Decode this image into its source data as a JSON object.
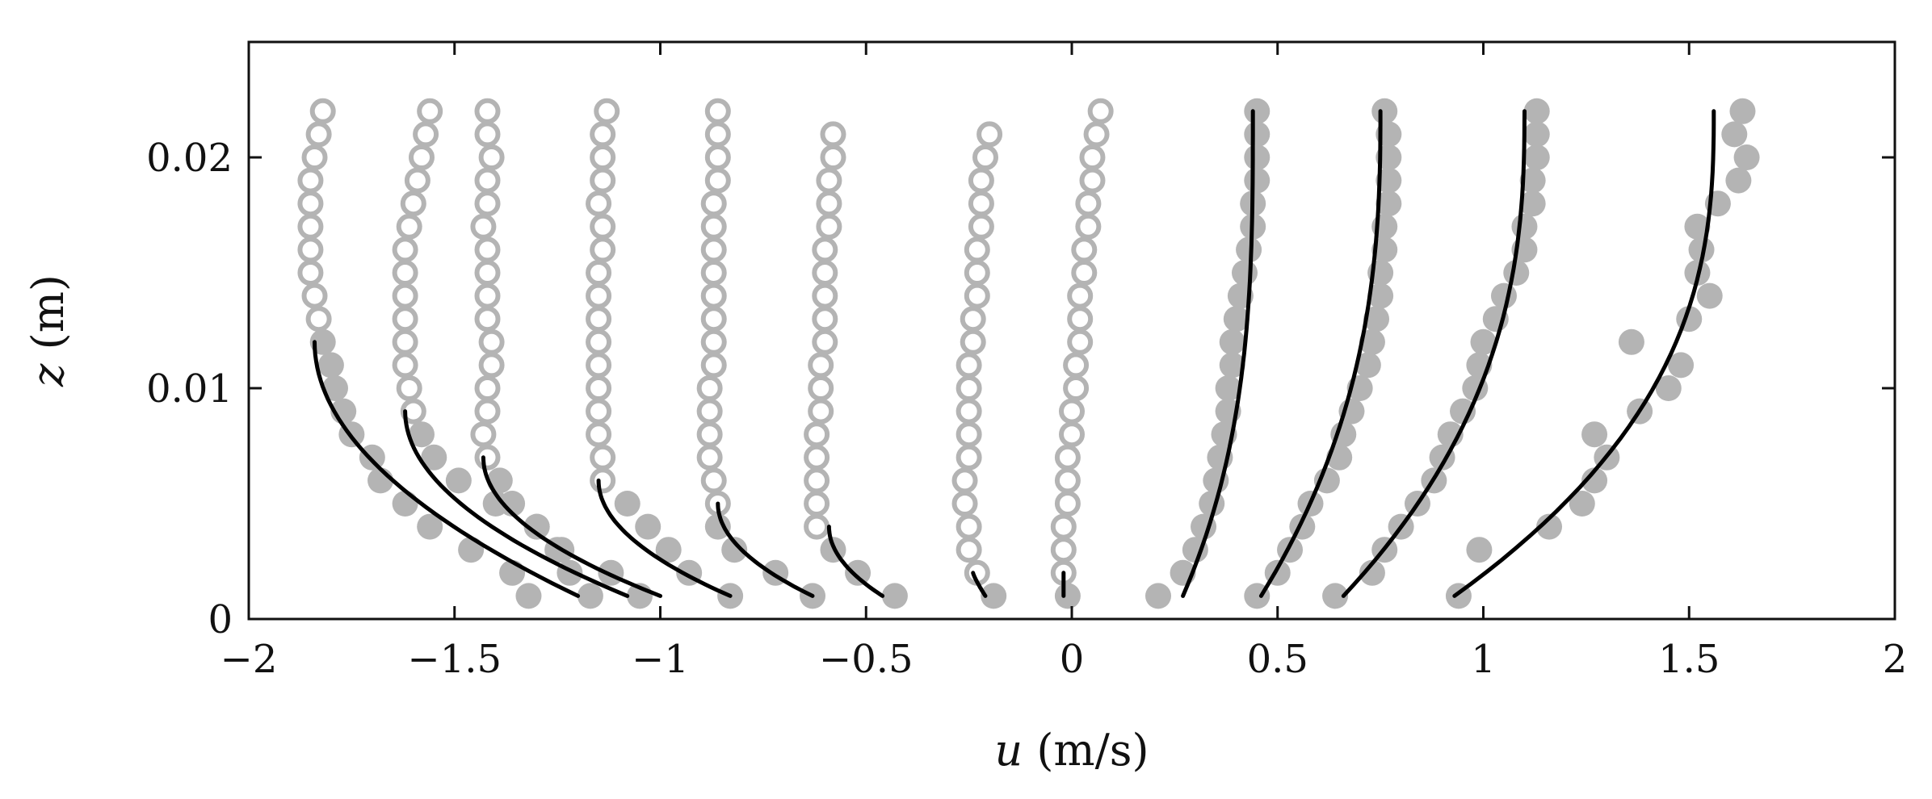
{
  "chart_data": {
    "type": "scatter",
    "title": "",
    "xlabel": {
      "symbol": "u",
      "unit": "(m/s)"
    },
    "ylabel": {
      "symbol": "z",
      "unit": "(m)"
    },
    "xlim": [
      -2,
      2
    ],
    "ylim": [
      0,
      0.025
    ],
    "xticks": [
      -2,
      -1.5,
      -1,
      -0.5,
      0,
      0.5,
      1,
      1.5,
      2
    ],
    "xtick_labels": [
      "−2",
      "−1.5",
      "−1",
      "−0.5",
      "0",
      "0.5",
      "1",
      "1.5",
      "2"
    ],
    "yticks": [
      0,
      0.01,
      0.02
    ],
    "ytick_labels": [
      "0",
      "0.01",
      "0.02"
    ],
    "grid": false,
    "legend": "none",
    "colors": {
      "points": "#b4b4b4",
      "lines": "#000000",
      "axes": "#111111"
    },
    "z_levels": [
      0.001,
      0.002,
      0.003,
      0.004,
      0.005,
      0.006,
      0.007,
      0.008,
      0.009,
      0.01,
      0.011,
      0.012,
      0.013,
      0.014,
      0.015,
      0.016,
      0.017,
      0.018,
      0.019,
      0.02,
      0.021,
      0.022
    ],
    "profiles": [
      {
        "open_u": [
          -1.83,
          -1.84,
          -1.85,
          -1.85,
          -1.85,
          -1.85,
          -1.85,
          -1.84,
          -1.83,
          -1.82
        ],
        "filled": [
          [
            -1.32,
            0.001
          ],
          [
            -1.36,
            0.002
          ],
          [
            -1.46,
            0.003
          ],
          [
            -1.56,
            0.004
          ],
          [
            -1.62,
            0.005
          ],
          [
            -1.68,
            0.006
          ],
          [
            -1.7,
            0.007
          ],
          [
            -1.75,
            0.008
          ],
          [
            -1.77,
            0.009
          ],
          [
            -1.79,
            0.01
          ],
          [
            -1.8,
            0.011
          ],
          [
            -1.82,
            0.012
          ]
        ],
        "line": {
          "u_bottom": -1.2,
          "u_top": -1.84,
          "z_top": 0.012,
          "n": 2.0
        }
      },
      {
        "open_u": [
          -1.6,
          -1.61,
          -1.62,
          -1.62,
          -1.62,
          -1.62,
          -1.62,
          -1.62,
          -1.61,
          -1.6,
          -1.59,
          -1.58,
          -1.57,
          -1.56,
          -1.55
        ],
        "filled": [
          [
            -1.17,
            0.001
          ],
          [
            -1.22,
            0.002
          ],
          [
            -1.25,
            0.003
          ],
          [
            -1.3,
            0.004
          ],
          [
            -1.4,
            0.005
          ],
          [
            -1.49,
            0.006
          ],
          [
            -1.55,
            0.007
          ],
          [
            -1.58,
            0.008
          ]
        ],
        "line": {
          "u_bottom": -1.08,
          "u_top": -1.62,
          "z_top": 0.009,
          "n": 2.0
        }
      },
      {
        "open_u": [
          -1.42,
          -1.43,
          -1.42,
          -1.42,
          -1.41,
          -1.41,
          -1.42,
          -1.42,
          -1.42,
          -1.42,
          -1.43,
          -1.42,
          -1.42,
          -1.41,
          -1.42,
          -1.42
        ],
        "filled": [
          [
            -1.05,
            0.001
          ],
          [
            -1.12,
            0.002
          ],
          [
            -1.24,
            0.003
          ],
          [
            -1.3,
            0.004
          ],
          [
            -1.36,
            0.005
          ],
          [
            -1.39,
            0.006
          ]
        ],
        "line": {
          "u_bottom": -1.0,
          "u_top": -1.43,
          "z_top": 0.007,
          "n": 2.0
        }
      },
      {
        "open_u": [
          -1.14,
          -1.14,
          -1.15,
          -1.15,
          -1.15,
          -1.15,
          -1.15,
          -1.15,
          -1.15,
          -1.15,
          -1.14,
          -1.14,
          -1.15,
          -1.14,
          -1.14,
          -1.14,
          -1.13
        ],
        "filled": [
          [
            -0.83,
            0.001
          ],
          [
            -0.93,
            0.002
          ],
          [
            -0.98,
            0.003
          ],
          [
            -1.03,
            0.004
          ],
          [
            -1.08,
            0.005
          ]
        ],
        "line": {
          "u_bottom": -0.83,
          "u_top": -1.15,
          "z_top": 0.006,
          "n": 2.0
        }
      },
      {
        "open_u": [
          -0.86,
          -0.87,
          -0.88,
          -0.88,
          -0.88,
          -0.88,
          -0.87,
          -0.87,
          -0.87,
          -0.87,
          -0.87,
          -0.87,
          -0.87,
          -0.87,
          -0.86,
          -0.86,
          -0.86,
          -0.86
        ],
        "filled": [
          [
            -0.63,
            0.001
          ],
          [
            -0.72,
            0.002
          ],
          [
            -0.82,
            0.003
          ],
          [
            -0.86,
            0.004
          ]
        ],
        "line": {
          "u_bottom": -0.63,
          "u_top": -0.86,
          "z_top": 0.005,
          "n": 2.0
        }
      },
      {
        "open_u": [
          -0.62,
          -0.62,
          -0.62,
          -0.62,
          -0.62,
          -0.61,
          -0.61,
          -0.61,
          -0.6,
          -0.6,
          -0.6,
          -0.6,
          -0.6,
          -0.59,
          -0.59,
          -0.59,
          -0.58,
          -0.58
        ],
        "filled": [
          [
            -0.43,
            0.001
          ],
          [
            -0.52,
            0.002
          ],
          [
            -0.58,
            0.003
          ]
        ],
        "line": {
          "u_bottom": -0.46,
          "u_top": -0.59,
          "z_top": 0.004,
          "n": 2.0
        }
      },
      {
        "open_u": [
          -0.23,
          -0.25,
          -0.25,
          -0.26,
          -0.26,
          -0.25,
          -0.25,
          -0.25,
          -0.25,
          -0.25,
          -0.24,
          -0.24,
          -0.23,
          -0.23,
          -0.23,
          -0.22,
          -0.22,
          -0.22,
          -0.21,
          -0.2
        ],
        "filled": [
          [
            -0.19,
            0.001
          ]
        ],
        "line": {
          "u_bottom": -0.21,
          "u_top": -0.24,
          "z_top": 0.002,
          "n": 1.2
        }
      },
      {
        "open_u": [
          -0.02,
          -0.02,
          -0.02,
          -0.01,
          -0.01,
          -0.01,
          0.0,
          0.0,
          0.01,
          0.01,
          0.02,
          0.02,
          0.02,
          0.03,
          0.03,
          0.04,
          0.04,
          0.05,
          0.05,
          0.06,
          0.07
        ],
        "filled": [
          [
            -0.01,
            0.001
          ]
        ],
        "line": {
          "u_bottom": -0.02,
          "u_top": -0.02,
          "z_top": 0.002,
          "n": 1.0
        }
      }
    ],
    "filled_profiles": [
      {
        "points": [
          [
            0.21,
            0.001
          ],
          [
            0.27,
            0.002
          ],
          [
            0.3,
            0.003
          ],
          [
            0.32,
            0.004
          ],
          [
            0.34,
            0.005
          ],
          [
            0.35,
            0.006
          ],
          [
            0.36,
            0.007
          ],
          [
            0.37,
            0.008
          ],
          [
            0.38,
            0.009
          ],
          [
            0.38,
            0.01
          ],
          [
            0.39,
            0.011
          ],
          [
            0.39,
            0.012
          ],
          [
            0.4,
            0.013
          ],
          [
            0.41,
            0.014
          ],
          [
            0.42,
            0.015
          ],
          [
            0.43,
            0.016
          ],
          [
            0.44,
            0.017
          ],
          [
            0.44,
            0.018
          ],
          [
            0.45,
            0.019
          ],
          [
            0.45,
            0.02
          ],
          [
            0.45,
            0.021
          ],
          [
            0.45,
            0.022
          ]
        ],
        "line": {
          "u_bottom": 0.27,
          "u_top": 0.44,
          "z_top": 0.022,
          "n": 3.0
        }
      },
      {
        "points": [
          [
            0.45,
            0.001
          ],
          [
            0.5,
            0.002
          ],
          [
            0.53,
            0.003
          ],
          [
            0.56,
            0.004
          ],
          [
            0.58,
            0.005
          ],
          [
            0.62,
            0.006
          ],
          [
            0.65,
            0.007
          ],
          [
            0.66,
            0.008
          ],
          [
            0.68,
            0.009
          ],
          [
            0.7,
            0.01
          ],
          [
            0.72,
            0.011
          ],
          [
            0.73,
            0.012
          ],
          [
            0.74,
            0.013
          ],
          [
            0.75,
            0.014
          ],
          [
            0.75,
            0.015
          ],
          [
            0.76,
            0.016
          ],
          [
            0.76,
            0.017
          ],
          [
            0.77,
            0.018
          ],
          [
            0.77,
            0.019
          ],
          [
            0.77,
            0.02
          ],
          [
            0.77,
            0.021
          ],
          [
            0.76,
            0.022
          ]
        ],
        "line": {
          "u_bottom": 0.46,
          "u_top": 0.75,
          "z_top": 0.022,
          "n": 2.5
        }
      },
      {
        "points": [
          [
            0.64,
            0.001
          ],
          [
            0.73,
            0.002
          ],
          [
            0.76,
            0.003
          ],
          [
            0.8,
            0.004
          ],
          [
            0.84,
            0.005
          ],
          [
            0.88,
            0.006
          ],
          [
            0.9,
            0.007
          ],
          [
            0.92,
            0.008
          ],
          [
            0.95,
            0.009
          ],
          [
            0.98,
            0.01
          ],
          [
            0.99,
            0.011
          ],
          [
            1.0,
            0.012
          ],
          [
            1.03,
            0.013
          ],
          [
            1.05,
            0.014
          ],
          [
            1.08,
            0.015
          ],
          [
            1.1,
            0.016
          ],
          [
            1.1,
            0.017
          ],
          [
            1.12,
            0.018
          ],
          [
            1.12,
            0.019
          ],
          [
            1.13,
            0.02
          ],
          [
            1.13,
            0.021
          ],
          [
            1.13,
            0.022
          ]
        ],
        "line": {
          "u_bottom": 0.66,
          "u_top": 1.1,
          "z_top": 0.022,
          "n": 2.5
        }
      },
      {
        "points": [
          [
            0.94,
            0.001
          ],
          [
            0.99,
            0.003
          ],
          [
            1.16,
            0.004
          ],
          [
            1.24,
            0.005
          ],
          [
            1.27,
            0.006
          ],
          [
            1.3,
            0.007
          ],
          [
            1.27,
            0.008
          ],
          [
            1.38,
            0.009
          ],
          [
            1.45,
            0.01
          ],
          [
            1.48,
            0.011
          ],
          [
            1.36,
            0.012
          ],
          [
            1.5,
            0.013
          ],
          [
            1.55,
            0.014
          ],
          [
            1.52,
            0.015
          ],
          [
            1.53,
            0.016
          ],
          [
            1.52,
            0.017
          ],
          [
            1.57,
            0.018
          ],
          [
            1.62,
            0.019
          ],
          [
            1.64,
            0.02
          ],
          [
            1.61,
            0.021
          ],
          [
            1.63,
            0.022
          ]
        ],
        "line": {
          "u_bottom": 0.93,
          "u_top": 1.56,
          "z_top": 0.022,
          "n": 2.6
        }
      }
    ]
  }
}
